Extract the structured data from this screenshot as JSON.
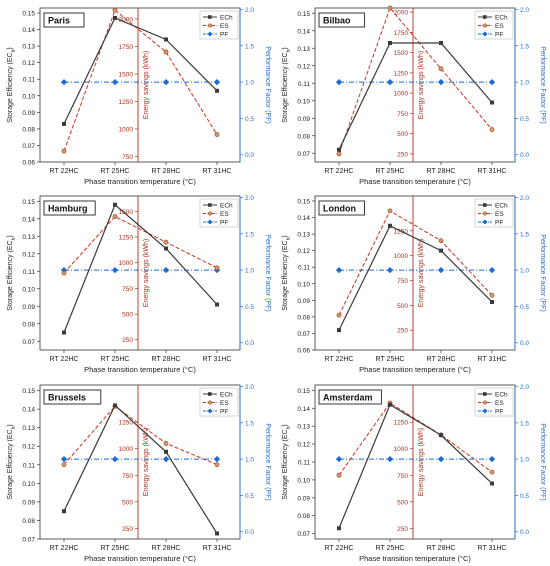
{
  "figure": {
    "colors": {
      "ec": "#3a3a3a",
      "es": "#cc3322",
      "pf": "#1a6bd6",
      "es_axis": "#b03020",
      "pf_axis": "#2a6fd0"
    },
    "xlabel": "Phase transition temperature (°C)",
    "ylabel_left": "Storage Efficiency (EC",
    "ylabel_left_sub": "h",
    "ylabel_left_end": ")",
    "ylabel_es": "Energy savings (kWh)",
    "ylabel_pf": "Performance Factor (PF)",
    "legend": [
      "ECh",
      "ES",
      "PF"
    ]
  },
  "chart_data": [
    {
      "type": "line",
      "title": "Paris",
      "categories": [
        "RT 22HC",
        "RT 25HC",
        "RT 28HC",
        "RT 31HC"
      ],
      "left_ticks": [
        "0.06",
        "0.07",
        "0.08",
        "0.09",
        "0.10",
        "0.11",
        "0.12",
        "0.13",
        "0.14",
        "0.15"
      ],
      "es_ticks": [
        "750",
        "1000",
        "1250",
        "1500",
        "1750",
        "2000"
      ],
      "pf_ticks": [
        "0.0",
        "0.5",
        "1.0",
        "1.5",
        "2.0"
      ],
      "series": [
        {
          "name": "ECh",
          "axis": "left",
          "values": [
            0.083,
            0.147,
            0.134,
            0.103
          ],
          "range": [
            0.06,
            0.153
          ]
        },
        {
          "name": "ES",
          "axis": "es",
          "values": [
            800,
            2080,
            1700,
            950
          ],
          "range": [
            700,
            2100
          ]
        },
        {
          "name": "PF",
          "axis": "pf",
          "values": [
            1.0,
            1.0,
            1.0,
            1.0
          ],
          "range": [
            -0.1,
            2.02
          ]
        }
      ]
    },
    {
      "type": "line",
      "title": "Bilbao",
      "categories": [
        "RT 22HC",
        "RT 25HC",
        "RT 28HC",
        "RT 31HC"
      ],
      "left_ticks": [
        "0.07",
        "0.08",
        "0.09",
        "0.10",
        "0.11",
        "0.12",
        "0.13",
        "0.14",
        "0.15"
      ],
      "es_ticks": [
        "250",
        "500",
        "750",
        "1000",
        "1250",
        "1500",
        "1750",
        "2000"
      ],
      "pf_ticks": [
        "0.0",
        "0.5",
        "1.0",
        "1.5",
        "2.0"
      ],
      "series": [
        {
          "name": "ECh",
          "axis": "left",
          "values": [
            0.072,
            0.133,
            0.133,
            0.099
          ],
          "range": [
            0.065,
            0.153
          ]
        },
        {
          "name": "ES",
          "axis": "es",
          "values": [
            250,
            2050,
            1300,
            550
          ],
          "range": [
            150,
            2050
          ]
        },
        {
          "name": "PF",
          "axis": "pf",
          "values": [
            1.0,
            1.0,
            1.0,
            1.0
          ],
          "range": [
            -0.1,
            2.02
          ]
        }
      ]
    },
    {
      "type": "line",
      "title": "Hamburg",
      "categories": [
        "RT 22HC",
        "RT 25HC",
        "RT 28HC",
        "RT 31HC"
      ],
      "left_ticks": [
        "0.07",
        "0.08",
        "0.09",
        "0.10",
        "0.11",
        "0.12",
        "0.13",
        "0.14",
        "0.15"
      ],
      "es_ticks": [
        "250",
        "500",
        "750",
        "1000",
        "1250",
        "1500"
      ],
      "pf_ticks": [
        "0.0",
        "0.5",
        "1.0",
        "1.5",
        "2.0"
      ],
      "series": [
        {
          "name": "ECh",
          "axis": "left",
          "values": [
            0.075,
            0.148,
            0.123,
            0.091
          ],
          "range": [
            0.065,
            0.153
          ]
        },
        {
          "name": "ES",
          "axis": "es",
          "values": [
            900,
            1450,
            1200,
            950
          ],
          "range": [
            150,
            1650
          ]
        },
        {
          "name": "PF",
          "axis": "pf",
          "values": [
            1.0,
            1.0,
            1.0,
            1.0
          ],
          "range": [
            -0.1,
            2.02
          ]
        }
      ]
    },
    {
      "type": "line",
      "title": "London",
      "categories": [
        "RT 22HC",
        "RT 25HC",
        "RT 28HC",
        "RT 31HC"
      ],
      "left_ticks": [
        "0.06",
        "0.07",
        "0.08",
        "0.09",
        "0.10",
        "0.11",
        "0.12",
        "0.13",
        "0.14",
        "0.15"
      ],
      "es_ticks": [
        "250",
        "500",
        "750",
        "1000",
        "1250"
      ],
      "pf_ticks": [
        "0.0",
        "0.5",
        "1.0",
        "1.5",
        "2.0"
      ],
      "series": [
        {
          "name": "ECh",
          "axis": "left",
          "values": [
            0.072,
            0.135,
            0.12,
            0.089
          ],
          "range": [
            0.06,
            0.153
          ]
        },
        {
          "name": "ES",
          "axis": "es",
          "values": [
            400,
            1450,
            1150,
            600
          ],
          "range": [
            50,
            1600
          ]
        },
        {
          "name": "PF",
          "axis": "pf",
          "values": [
            1.0,
            1.0,
            1.0,
            1.0
          ],
          "range": [
            -0.1,
            2.02
          ]
        }
      ]
    },
    {
      "type": "line",
      "title": "Brussels",
      "categories": [
        "RT 22HC",
        "RT 25HC",
        "RT 28HC",
        "RT 31HC"
      ],
      "left_ticks": [
        "0.07",
        "0.08",
        "0.09",
        "0.10",
        "0.11",
        "0.12",
        "0.13",
        "0.14",
        "0.15"
      ],
      "es_ticks": [
        "250",
        "500",
        "750",
        "1000",
        "1250"
      ],
      "pf_ticks": [
        "0.0",
        "0.5",
        "1.0",
        "1.5",
        "2.0"
      ],
      "series": [
        {
          "name": "ECh",
          "axis": "left",
          "values": [
            0.085,
            0.142,
            0.117,
            0.073
          ],
          "range": [
            0.07,
            0.153
          ]
        },
        {
          "name": "ES",
          "axis": "es",
          "values": [
            850,
            1400,
            1050,
            850
          ],
          "range": [
            150,
            1600
          ]
        },
        {
          "name": "PF",
          "axis": "pf",
          "values": [
            1.0,
            1.0,
            1.0,
            1.0
          ],
          "range": [
            -0.1,
            2.02
          ]
        }
      ]
    },
    {
      "type": "line",
      "title": "Amsterdam",
      "categories": [
        "RT 22HC",
        "RT 25HC",
        "RT 28HC",
        "RT 31HC"
      ],
      "left_ticks": [
        "0.07",
        "0.08",
        "0.09",
        "0.10",
        "0.11",
        "0.12",
        "0.13",
        "0.14",
        "0.15"
      ],
      "es_ticks": [
        "250",
        "500",
        "750",
        "1000",
        "1250"
      ],
      "pf_ticks": [
        "0.0",
        "0.5",
        "1.0",
        "1.5",
        "2.0"
      ],
      "series": [
        {
          "name": "ECh",
          "axis": "left",
          "values": [
            0.073,
            0.142,
            0.125,
            0.098
          ],
          "range": [
            0.067,
            0.153
          ]
        },
        {
          "name": "ES",
          "axis": "es",
          "values": [
            750,
            1430,
            1130,
            780
          ],
          "range": [
            150,
            1600
          ]
        },
        {
          "name": "PF",
          "axis": "pf",
          "values": [
            1.0,
            1.0,
            1.0,
            1.0
          ],
          "range": [
            -0.1,
            2.02
          ]
        }
      ]
    }
  ]
}
